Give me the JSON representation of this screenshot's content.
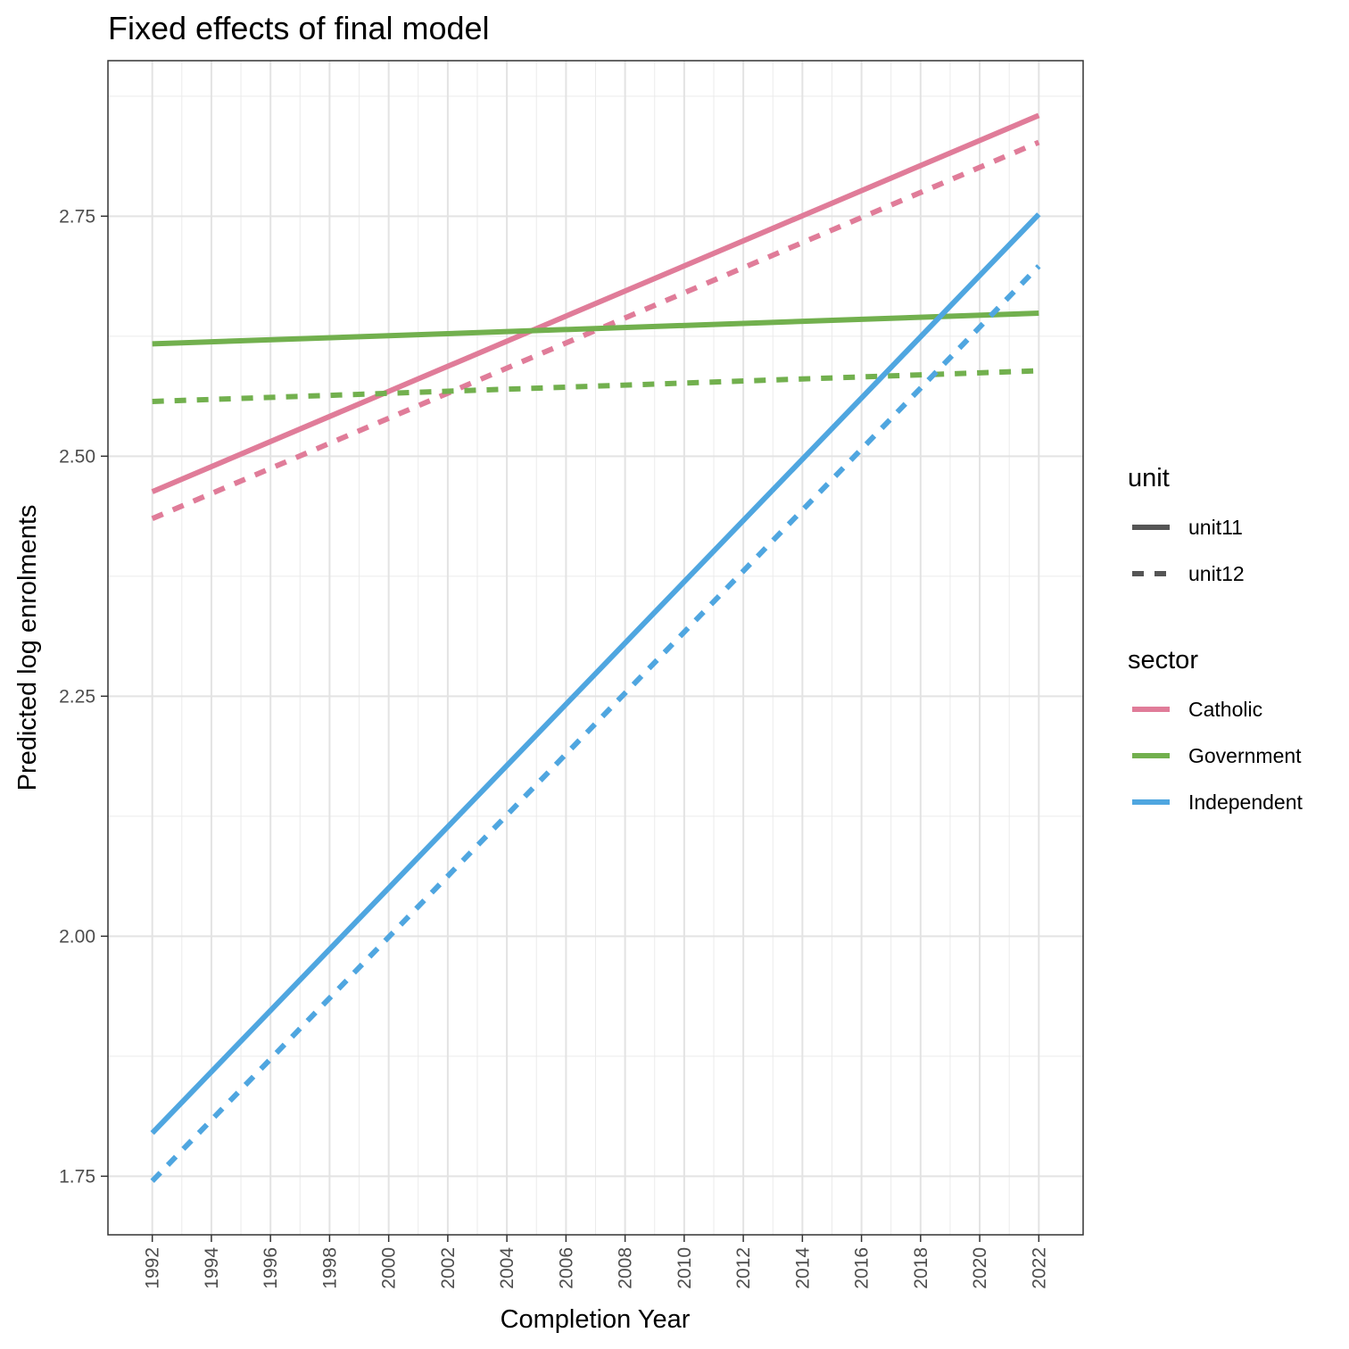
{
  "chart_data": {
    "type": "line",
    "title": "Fixed effects of final model",
    "xlabel": "Completion Year",
    "ylabel": "Predicted log enrolments",
    "xlim": [
      1990.5,
      2023.5
    ],
    "ylim": [
      1.689,
      2.912
    ],
    "x_ticks": [
      1992,
      1994,
      1996,
      1998,
      2000,
      2002,
      2004,
      2006,
      2008,
      2010,
      2012,
      2014,
      2016,
      2018,
      2020,
      2022
    ],
    "x_tick_labels": [
      "1992",
      "1994",
      "1996",
      "1998",
      "2000",
      "2002",
      "2004",
      "2006",
      "2008",
      "2010",
      "2012",
      "2014",
      "2016",
      "2018",
      "2020",
      "2022"
    ],
    "y_ticks": [
      1.75,
      2.0,
      2.25,
      2.5,
      2.75
    ],
    "y_tick_labels": [
      "1.75",
      "2.00",
      "2.25",
      "2.50",
      "2.75"
    ],
    "grid": true,
    "legend_placement": "right",
    "legends": [
      {
        "title": "unit",
        "entries": [
          {
            "label": "unit11",
            "linetype": "solid"
          },
          {
            "label": "unit12",
            "linetype": "dashed"
          }
        ]
      },
      {
        "title": "sector",
        "entries": [
          {
            "label": "Catholic",
            "color": "#E07C99"
          },
          {
            "label": "Government",
            "color": "#72B04E"
          },
          {
            "label": "Independent",
            "color": "#4FA6E0"
          }
        ]
      }
    ],
    "series": [
      {
        "sector": "Catholic",
        "unit": "unit11",
        "x": [
          1992,
          2022
        ],
        "y": [
          2.463,
          2.855
        ]
      },
      {
        "sector": "Catholic",
        "unit": "unit12",
        "x": [
          1992,
          2022
        ],
        "y": [
          2.435,
          2.827
        ]
      },
      {
        "sector": "Government",
        "unit": "unit11",
        "x": [
          1992,
          2022
        ],
        "y": [
          2.617,
          2.649
        ]
      },
      {
        "sector": "Government",
        "unit": "unit12",
        "x": [
          1992,
          2022
        ],
        "y": [
          2.557,
          2.589
        ]
      },
      {
        "sector": "Independent",
        "unit": "unit11",
        "x": [
          1992,
          2022
        ],
        "y": [
          1.795,
          2.752
        ]
      },
      {
        "sector": "Independent",
        "unit": "unit12",
        "x": [
          1992,
          2022
        ],
        "y": [
          1.745,
          2.698
        ]
      }
    ]
  }
}
